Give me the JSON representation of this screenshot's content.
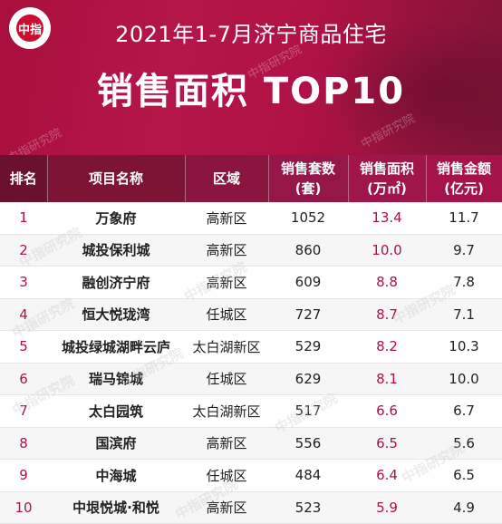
{
  "header": {
    "logo_text": "中指",
    "title_line1": "2021年1-7月济宁商品住宅",
    "title_line2": "销售面积 TOP10",
    "watermark": "中指研究院"
  },
  "table": {
    "headers": {
      "rank": "排名",
      "project": "项目名称",
      "district": "区域",
      "units": "销售套数\n(套)",
      "area": "销售面积\n(万㎡)",
      "amount": "销售金额\n(亿元)"
    },
    "rows": [
      {
        "rank": "1",
        "project": "万象府",
        "district": "高新区",
        "units": "1052",
        "area": "13.4",
        "amount": "11.7"
      },
      {
        "rank": "2",
        "project": "城投保利城",
        "district": "高新区",
        "units": "860",
        "area": "10.0",
        "amount": "9.7"
      },
      {
        "rank": "3",
        "project": "融创济宁府",
        "district": "高新区",
        "units": "609",
        "area": "8.8",
        "amount": "7.8"
      },
      {
        "rank": "4",
        "project": "恒大悦珑湾",
        "district": "任城区",
        "units": "727",
        "area": "8.7",
        "amount": "7.1"
      },
      {
        "rank": "5",
        "project": "城投绿城湖畔云庐",
        "district": "太白湖新区",
        "units": "529",
        "area": "8.2",
        "amount": "10.3"
      },
      {
        "rank": "6",
        "project": "瑞马锦城",
        "district": "任城区",
        "units": "629",
        "area": "8.1",
        "amount": "10.0"
      },
      {
        "rank": "7",
        "project": "太白园筑",
        "district": "太白湖新区",
        "units": "517",
        "area": "6.6",
        "amount": "6.7"
      },
      {
        "rank": "8",
        "project": "国滨府",
        "district": "高新区",
        "units": "556",
        "area": "6.5",
        "amount": "5.6"
      },
      {
        "rank": "9",
        "project": "中海城",
        "district": "任城区",
        "units": "484",
        "area": "6.4",
        "amount": "6.5"
      },
      {
        "rank": "10",
        "project": "中垠悦城·和悦",
        "district": "高新区",
        "units": "523",
        "area": "5.9",
        "amount": "4.9"
      }
    ]
  },
  "colors": {
    "brand": "#b0123f",
    "banner_dark": "#7d1436"
  }
}
